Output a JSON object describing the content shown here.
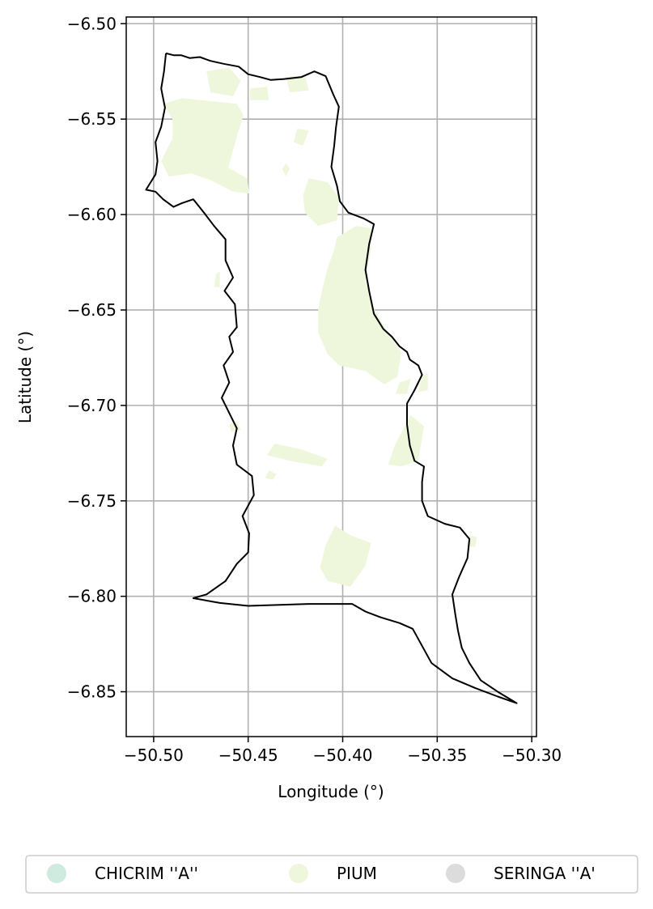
{
  "chart_data": {
    "type": "map",
    "xlabel": "Longitude (°)",
    "ylabel": "Latitude (°)",
    "xlim": [
      -50.5145,
      -50.2975
    ],
    "ylim": [
      -6.8735,
      -6.4965
    ],
    "xticks": [
      {
        "value": -50.5,
        "label": "−50.50"
      },
      {
        "value": -50.45,
        "label": "−50.45"
      },
      {
        "value": -50.4,
        "label": "−50.40"
      },
      {
        "value": -50.35,
        "label": "−50.35"
      },
      {
        "value": -50.3,
        "label": "−50.30"
      }
    ],
    "yticks": [
      {
        "value": -6.5,
        "label": "−6.50"
      },
      {
        "value": -6.55,
        "label": "−6.55"
      },
      {
        "value": -6.6,
        "label": "−6.60"
      },
      {
        "value": -6.65,
        "label": "−6.65"
      },
      {
        "value": -6.7,
        "label": "−6.70"
      },
      {
        "value": -6.75,
        "label": "−6.75"
      },
      {
        "value": -6.8,
        "label": "−6.80"
      },
      {
        "value": -6.85,
        "label": "−6.85"
      }
    ],
    "grid": true,
    "legend_position": "bottom-center",
    "legend": [
      {
        "label": "CHICRIM ''A''",
        "color": "#cfeadf"
      },
      {
        "label": "PIUM",
        "color": "#eef7dc"
      },
      {
        "label": "SERINGA ''A'",
        "color": "#dcdcdc"
      }
    ],
    "boundary": {
      "color": "#000000",
      "points": [
        [
          -50.4935,
          -6.5155
        ],
        [
          -50.4895,
          -6.5165
        ],
        [
          -50.4855,
          -6.5165
        ],
        [
          -50.481,
          -6.518
        ],
        [
          -50.4755,
          -6.5175
        ],
        [
          -50.47,
          -6.5195
        ],
        [
          -50.463,
          -6.521
        ],
        [
          -50.455,
          -6.5225
        ],
        [
          -50.45,
          -6.5265
        ],
        [
          -50.4435,
          -6.528
        ],
        [
          -50.438,
          -6.5295
        ],
        [
          -50.431,
          -6.529
        ],
        [
          -50.422,
          -6.528
        ],
        [
          -50.415,
          -6.525
        ],
        [
          -50.409,
          -6.5275
        ],
        [
          -50.405,
          -6.537
        ],
        [
          -50.402,
          -6.5435
        ],
        [
          -50.4035,
          -6.554
        ],
        [
          -50.4045,
          -6.564
        ],
        [
          -50.406,
          -6.575
        ],
        [
          -50.403,
          -6.585
        ],
        [
          -50.4015,
          -6.593
        ],
        [
          -50.397,
          -6.599
        ],
        [
          -50.389,
          -6.602
        ],
        [
          -50.3835,
          -6.605
        ],
        [
          -50.386,
          -6.6155
        ],
        [
          -50.388,
          -6.629
        ],
        [
          -50.386,
          -6.64
        ],
        [
          -50.3835,
          -6.652
        ],
        [
          -50.3785,
          -6.66
        ],
        [
          -50.374,
          -6.664
        ],
        [
          -50.37,
          -6.669
        ],
        [
          -50.366,
          -6.672
        ],
        [
          -50.3645,
          -6.676
        ],
        [
          -50.36,
          -6.679
        ],
        [
          -50.358,
          -6.684
        ],
        [
          -50.362,
          -6.692
        ],
        [
          -50.366,
          -6.699
        ],
        [
          -50.366,
          -6.71
        ],
        [
          -50.3645,
          -6.721
        ],
        [
          -50.362,
          -6.729
        ],
        [
          -50.357,
          -6.732
        ],
        [
          -50.358,
          -6.74
        ],
        [
          -50.358,
          -6.75
        ],
        [
          -50.355,
          -6.758
        ],
        [
          -50.346,
          -6.762
        ],
        [
          -50.338,
          -6.764
        ],
        [
          -50.333,
          -6.77
        ],
        [
          -50.334,
          -6.78
        ],
        [
          -50.3385,
          -6.79
        ],
        [
          -50.342,
          -6.799
        ],
        [
          -50.3405,
          -6.809
        ],
        [
          -50.339,
          -6.818
        ],
        [
          -50.337,
          -6.827
        ],
        [
          -50.333,
          -6.835
        ],
        [
          -50.327,
          -6.844
        ],
        [
          -50.318,
          -6.85
        ],
        [
          -50.308,
          -6.856
        ],
        [
          -50.318,
          -6.8525
        ],
        [
          -50.33,
          -6.848
        ],
        [
          -50.342,
          -6.843
        ],
        [
          -50.353,
          -6.835
        ],
        [
          -50.363,
          -6.817
        ],
        [
          -50.37,
          -6.814
        ],
        [
          -50.38,
          -6.811
        ],
        [
          -50.388,
          -6.808
        ],
        [
          -50.395,
          -6.804
        ],
        [
          -50.418,
          -6.804
        ],
        [
          -50.45,
          -6.805
        ],
        [
          -50.465,
          -6.8035
        ],
        [
          -50.479,
          -6.801
        ],
        [
          -50.472,
          -6.799
        ],
        [
          -50.462,
          -6.792
        ],
        [
          -50.456,
          -6.783
        ],
        [
          -50.45,
          -6.777
        ],
        [
          -50.4495,
          -6.767
        ],
        [
          -50.453,
          -6.758
        ],
        [
          -50.447,
          -6.747
        ],
        [
          -50.448,
          -6.737
        ],
        [
          -50.456,
          -6.731
        ],
        [
          -50.458,
          -6.721
        ],
        [
          -50.456,
          -6.712
        ],
        [
          -50.461,
          -6.702
        ],
        [
          -50.464,
          -6.696
        ],
        [
          -50.46,
          -6.688
        ],
        [
          -50.463,
          -6.679
        ],
        [
          -50.458,
          -6.672
        ],
        [
          -50.46,
          -6.664
        ],
        [
          -50.456,
          -6.659
        ],
        [
          -50.457,
          -6.647
        ],
        [
          -50.4625,
          -6.64
        ],
        [
          -50.458,
          -6.633
        ],
        [
          -50.462,
          -6.624
        ],
        [
          -50.462,
          -6.613
        ],
        [
          -50.468,
          -6.606
        ],
        [
          -50.473,
          -6.5995
        ],
        [
          -50.479,
          -6.592
        ],
        [
          -50.485,
          -6.594
        ],
        [
          -50.4895,
          -6.596
        ],
        [
          -50.495,
          -6.592
        ],
        [
          -50.499,
          -6.588
        ],
        [
          -50.504,
          -6.587
        ],
        [
          -50.499,
          -6.579
        ],
        [
          -50.498,
          -6.572
        ],
        [
          -50.499,
          -6.562
        ],
        [
          -50.496,
          -6.554
        ],
        [
          -50.494,
          -6.544
        ],
        [
          -50.496,
          -6.534
        ],
        [
          -50.4945,
          -6.525
        ],
        [
          -50.4935,
          -6.5155
        ]
      ]
    },
    "polygons": [
      {
        "class": "PIUM",
        "points": [
          [
            -50.495,
            -6.542
          ],
          [
            -50.485,
            -6.539
          ],
          [
            -50.456,
            -6.542
          ],
          [
            -50.4525,
            -6.548
          ],
          [
            -50.456,
            -6.559
          ],
          [
            -50.4605,
            -6.5755
          ],
          [
            -50.4505,
            -6.581
          ],
          [
            -50.4495,
            -6.589
          ],
          [
            -50.458,
            -6.588
          ],
          [
            -50.47,
            -6.582
          ],
          [
            -50.48,
            -6.5785
          ],
          [
            -50.492,
            -6.58
          ],
          [
            -50.496,
            -6.572
          ],
          [
            -50.49,
            -6.56
          ],
          [
            -50.49,
            -6.55
          ]
        ]
      },
      {
        "class": "PIUM",
        "points": [
          [
            -50.472,
            -6.525
          ],
          [
            -50.46,
            -6.523
          ],
          [
            -50.454,
            -6.53
          ],
          [
            -50.458,
            -6.538
          ],
          [
            -50.47,
            -6.536
          ]
        ]
      },
      {
        "class": "PIUM",
        "points": [
          [
            -50.449,
            -6.534
          ],
          [
            -50.44,
            -6.533
          ],
          [
            -50.439,
            -6.54
          ],
          [
            -50.449,
            -6.54
          ]
        ]
      },
      {
        "class": "PIUM",
        "points": [
          [
            -50.43,
            -6.528
          ],
          [
            -50.42,
            -6.527
          ],
          [
            -50.418,
            -6.535
          ],
          [
            -50.428,
            -6.536
          ]
        ]
      },
      {
        "class": "PIUM",
        "points": [
          [
            -50.424,
            -6.555
          ],
          [
            -50.418,
            -6.556
          ],
          [
            -50.421,
            -6.564
          ],
          [
            -50.426,
            -6.562
          ]
        ]
      },
      {
        "class": "PIUM",
        "points": [
          [
            -50.43,
            -6.573
          ],
          [
            -50.428,
            -6.576
          ],
          [
            -50.43,
            -6.58
          ],
          [
            -50.432,
            -6.576
          ]
        ]
      },
      {
        "class": "PIUM",
        "points": [
          [
            -50.418,
            -6.581
          ],
          [
            -50.408,
            -6.583
          ],
          [
            -50.402,
            -6.591
          ],
          [
            -50.403,
            -6.603
          ],
          [
            -50.413,
            -6.606
          ],
          [
            -50.42,
            -6.599
          ],
          [
            -50.421,
            -6.59
          ]
        ]
      },
      {
        "class": "PIUM",
        "points": [
          [
            -50.393,
            -6.606
          ],
          [
            -50.385,
            -6.607
          ],
          [
            -50.385,
            -6.618
          ],
          [
            -50.388,
            -6.635
          ],
          [
            -50.383,
            -6.65
          ],
          [
            -50.376,
            -6.662
          ],
          [
            -50.369,
            -6.672
          ],
          [
            -50.371,
            -6.685
          ],
          [
            -50.378,
            -6.689
          ],
          [
            -50.388,
            -6.682
          ],
          [
            -50.402,
            -6.679
          ],
          [
            -50.408,
            -6.673
          ],
          [
            -50.413,
            -6.662
          ],
          [
            -50.413,
            -6.65
          ],
          [
            -50.411,
            -6.64
          ],
          [
            -50.408,
            -6.628
          ],
          [
            -50.405,
            -6.62
          ],
          [
            -50.403,
            -6.612
          ]
        ]
      },
      {
        "class": "PIUM",
        "points": [
          [
            -50.37,
            -6.688
          ],
          [
            -50.364,
            -6.686
          ],
          [
            -50.366,
            -6.694
          ],
          [
            -50.372,
            -6.694
          ]
        ]
      },
      {
        "class": "PIUM",
        "points": [
          [
            -50.358,
            -6.685
          ],
          [
            -50.355,
            -6.683
          ],
          [
            -50.355,
            -6.692
          ],
          [
            -50.36,
            -6.693
          ]
        ]
      },
      {
        "class": "PIUM",
        "points": [
          [
            -50.364,
            -6.705
          ],
          [
            -50.357,
            -6.711
          ],
          [
            -50.36,
            -6.729
          ],
          [
            -50.369,
            -6.732
          ],
          [
            -50.376,
            -6.731
          ],
          [
            -50.372,
            -6.72
          ]
        ]
      },
      {
        "class": "PIUM",
        "points": [
          [
            -50.439,
            -6.734
          ],
          [
            -50.435,
            -6.736
          ],
          [
            -50.437,
            -6.739
          ],
          [
            -50.441,
            -6.738
          ]
        ]
      },
      {
        "class": "PIUM",
        "points": [
          [
            -50.436,
            -6.72
          ],
          [
            -50.422,
            -6.723
          ],
          [
            -50.408,
            -6.728
          ],
          [
            -50.411,
            -6.732
          ],
          [
            -50.428,
            -6.729
          ],
          [
            -50.44,
            -6.726
          ]
        ]
      },
      {
        "class": "PIUM",
        "points": [
          [
            -50.404,
            -6.763
          ],
          [
            -50.396,
            -6.768
          ],
          [
            -50.385,
            -6.772
          ],
          [
            -50.388,
            -6.784
          ],
          [
            -50.396,
            -6.795
          ],
          [
            -50.408,
            -6.792
          ],
          [
            -50.412,
            -6.785
          ],
          [
            -50.409,
            -6.773
          ]
        ]
      },
      {
        "class": "PIUM",
        "points": [
          [
            -50.46,
            -6.71
          ],
          [
            -50.456,
            -6.708
          ],
          [
            -50.454,
            -6.713
          ],
          [
            -50.459,
            -6.714
          ]
        ]
      },
      {
        "class": "PIUM",
        "points": [
          [
            -50.467,
            -6.631
          ],
          [
            -50.465,
            -6.63
          ],
          [
            -50.465,
            -6.638
          ],
          [
            -50.468,
            -6.638
          ]
        ]
      },
      {
        "class": "PIUM",
        "points": [
          [
            -50.333,
            -6.768
          ],
          [
            -50.329,
            -6.769
          ],
          [
            -50.33,
            -6.774
          ],
          [
            -50.334,
            -6.774
          ]
        ]
      }
    ]
  }
}
